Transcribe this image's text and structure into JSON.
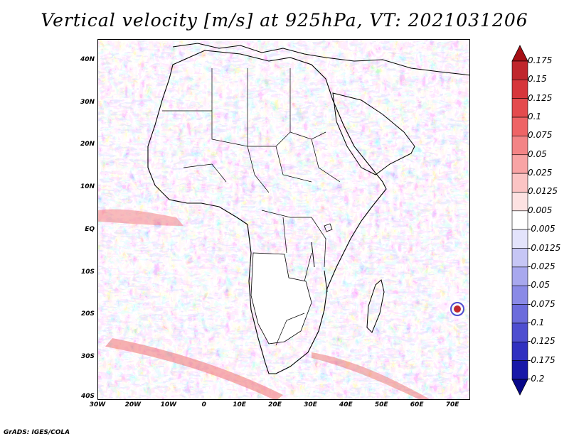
{
  "title": "Vertical velocity [m/s] at 925hPa, VT: 2021031206",
  "credit": "GrADS: IGES/COLA",
  "map": {
    "projection": "latlon",
    "lon_range": [
      -30,
      75
    ],
    "lat_range": [
      -40,
      45
    ],
    "lat_ticks": [
      {
        "value": 40,
        "label": "40N"
      },
      {
        "value": 30,
        "label": "30N"
      },
      {
        "value": 20,
        "label": "20N"
      },
      {
        "value": 10,
        "label": "10N"
      },
      {
        "value": 0,
        "label": "EQ"
      },
      {
        "value": -10,
        "label": "10S"
      },
      {
        "value": -20,
        "label": "20S"
      },
      {
        "value": -30,
        "label": "30S"
      },
      {
        "value": -40,
        "label": "40S"
      }
    ],
    "lon_ticks": [
      {
        "value": -30,
        "label": "30W"
      },
      {
        "value": -20,
        "label": "20W"
      },
      {
        "value": -10,
        "label": "10W"
      },
      {
        "value": 0,
        "label": "0"
      },
      {
        "value": 10,
        "label": "10E"
      },
      {
        "value": 20,
        "label": "20E"
      },
      {
        "value": 30,
        "label": "30E"
      },
      {
        "value": 40,
        "label": "40E"
      },
      {
        "value": 50,
        "label": "50E"
      },
      {
        "value": 60,
        "label": "60E"
      },
      {
        "value": 70,
        "label": "70E"
      }
    ]
  },
  "chart_data": {
    "type": "heatmap",
    "title": "Vertical velocity [m/s] at 925hPa, VT: 2021031206",
    "variable": "Vertical velocity",
    "units": "m/s",
    "level": "925hPa",
    "valid_time": "2021031206",
    "colorbar": {
      "levels": [
        0.175,
        0.15,
        0.125,
        0.1,
        0.075,
        0.05,
        0.025,
        0.0125,
        0.005,
        -0.005,
        -0.0125,
        -0.025,
        -0.05,
        -0.075,
        -0.1,
        -0.125,
        -0.175,
        -0.2
      ],
      "labels": [
        "0.175",
        "0.15",
        "0.125",
        "0.1",
        "0.075",
        "0.05",
        "0.025",
        "0.0125",
        "0.005",
        "-0.005",
        "-0.0125",
        "-0.025",
        "-0.05",
        "-0.075",
        "-0.1",
        "-0.125",
        "-0.175",
        "-0.2"
      ],
      "colors": [
        "#a50f15",
        "#c0272d",
        "#d6363b",
        "#e44b4e",
        "#ee6466",
        "#f38486",
        "#f8a4a5",
        "#fbc4c4",
        "#fde2e2",
        "#ffffff",
        "#e3e3fb",
        "#c6c6f5",
        "#a8a8ee",
        "#8a8ae6",
        "#6c6cdc",
        "#4e4ed0",
        "#3030c0",
        "#1818a8",
        "#08088a"
      ]
    }
  }
}
